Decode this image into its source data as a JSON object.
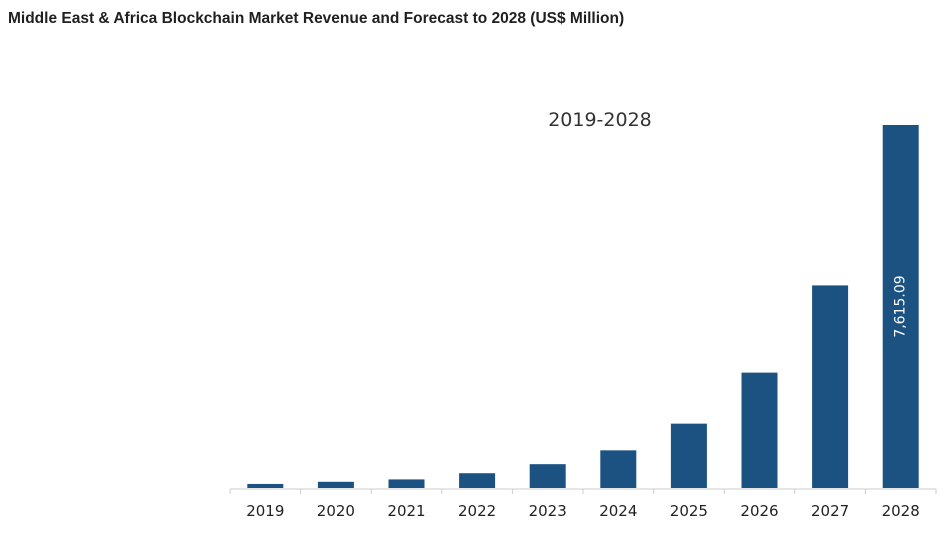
{
  "chart_data": {
    "type": "bar",
    "title": "Middle East & Africa Blockchain Market Revenue and Forecast to 2028 (US$ Million)",
    "annotation": "2019-2028",
    "xlabel": "",
    "ylabel": "",
    "categories": [
      "2019",
      "2020",
      "2021",
      "2022",
      "2023",
      "2024",
      "2025",
      "2026",
      "2027",
      "2028"
    ],
    "values": [
      85,
      130,
      180,
      310,
      500,
      790,
      1350,
      2420,
      4250,
      7615.09
    ],
    "data_labels": [
      null,
      null,
      null,
      null,
      null,
      null,
      null,
      null,
      null,
      "7,615.09"
    ],
    "ylim": [
      0,
      7615.09
    ],
    "grid": false,
    "legend": "none",
    "bar_color": "#1b5282",
    "axis_color": "#cccccc"
  }
}
